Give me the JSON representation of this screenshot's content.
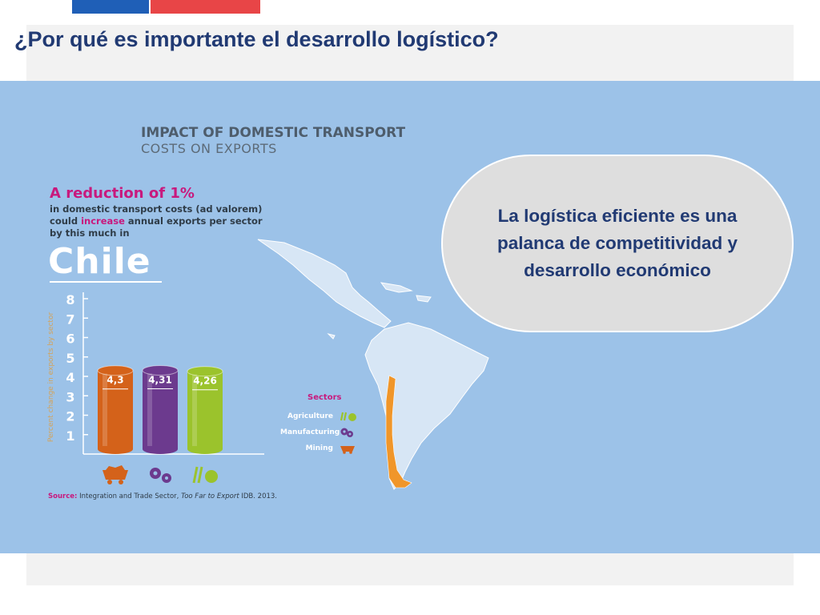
{
  "slide": {
    "title": "¿Por qué es importante el desarrollo logístico?"
  },
  "infographic": {
    "title_line1": "IMPACT OF DOMESTIC TRANSPORT",
    "title_line2": "COSTS ON EXPORTS",
    "reduction_prefix": "A reduction of ",
    "reduction_value": "1%",
    "desc_line1": "in domestic transport costs (ad valorem)",
    "desc_line2_pre": "could ",
    "desc_line2_hl": "increase",
    "desc_line2_post": " annual exports per sector",
    "desc_line3": "by this much in",
    "country": "Chile",
    "legend_title": "Sectors",
    "source_label": "Source:",
    "source_text": " Integration and Trade Sector, ",
    "source_italic": "Too Far to Export",
    "source_tail": " IDB. 2013."
  },
  "bubble": {
    "text": "La logística eficiente es una palanca de competitividad y desarrollo económico"
  },
  "colors": {
    "mining": "#d4621a",
    "manufacturing": "#6c3a8e",
    "agriculture": "#9bc32c",
    "accent": "#c8197d",
    "title": "#213a73"
  },
  "chart_data": {
    "type": "bar",
    "ylabel": "Percent change in exports by sector",
    "ylim": [
      0,
      8
    ],
    "yticks": [
      "1",
      "2",
      "3",
      "4",
      "5",
      "6",
      "7",
      "8"
    ],
    "categories": [
      "Mining",
      "Manufacturing",
      "Agriculture"
    ],
    "values": [
      4.3,
      4.31,
      4.26
    ],
    "value_labels": [
      "4,3",
      "4,31",
      "4,26"
    ],
    "colors": [
      "#d4621a",
      "#6c3a8e",
      "#9bc32c"
    ],
    "legend": [
      {
        "name": "Agriculture",
        "icon": "agriculture-icon",
        "color": "#9bc32c"
      },
      {
        "name": "Manufacturing",
        "icon": "manufacturing-icon",
        "color": "#6c3a8e"
      },
      {
        "name": "Mining",
        "icon": "mining-icon",
        "color": "#d4621a"
      }
    ]
  }
}
